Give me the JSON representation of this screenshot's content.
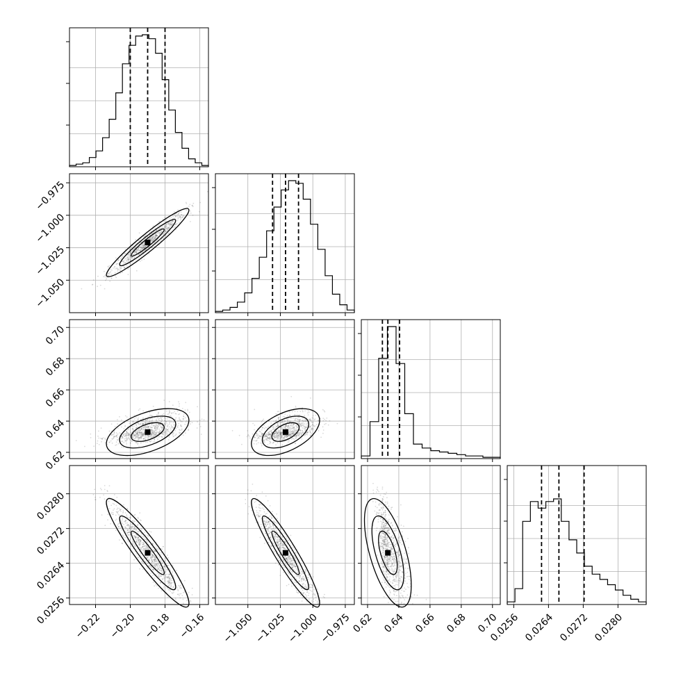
{
  "chart_data": {
    "type": "corner",
    "title": "",
    "parameters": [
      {
        "range": [
          -0.235,
          -0.155
        ],
        "ticks": [
          -0.22,
          -0.2,
          -0.18,
          -0.16
        ],
        "tick_labels": [
          "−0.22",
          "−0.20",
          "−0.18",
          "−0.16"
        ],
        "median": -0.19,
        "q16": -0.2,
        "q84": -0.18,
        "spread": 0.0095
      },
      {
        "range": [
          -1.075,
          -0.968
        ],
        "ticks": [
          -1.05,
          -1.025,
          -1.0,
          -0.975
        ],
        "tick_labels": [
          "−1.050",
          "−1.025",
          "−1.000",
          "−0.975"
        ],
        "median": -1.021,
        "q16": -1.031,
        "q84": -1.011,
        "spread": 0.0105
      },
      {
        "range": [
          0.616,
          0.705
        ],
        "ticks": [
          0.62,
          0.64,
          0.66,
          0.68,
          0.7
        ],
        "tick_labels": [
          "0.62",
          "0.64",
          "0.66",
          "0.68",
          "0.70"
        ],
        "median": 0.633,
        "q16": 0.6295,
        "q84": 0.6405,
        "spread": 0.006
      },
      {
        "range": [
          0.02545,
          0.02865
        ],
        "ticks": [
          0.0256,
          0.0264,
          0.0272,
          0.028
        ],
        "tick_labels": [
          "0.0256",
          "0.0264",
          "0.0272",
          "0.0280"
        ],
        "median": 0.02664,
        "q16": 0.02624,
        "q84": 0.02722,
        "spread": 0.0005
      }
    ],
    "histograms": [
      {
        "counts": [
          1,
          2,
          3,
          7,
          12,
          22,
          36,
          56,
          78,
          92,
          99,
          100,
          97,
          86,
          66,
          43,
          26,
          14,
          6,
          3,
          1
        ]
      },
      {
        "counts": [
          1,
          2,
          4,
          8,
          15,
          26,
          42,
          62,
          80,
          93,
          100,
          98,
          86,
          67,
          48,
          28,
          14,
          6,
          2
        ]
      },
      {
        "counts": [
          2,
          28,
          76,
          100,
          72,
          34,
          11,
          8,
          6,
          5,
          4,
          3,
          2,
          2,
          1,
          1
        ]
      },
      {
        "counts": [
          2,
          12,
          63,
          78,
          73,
          78,
          80,
          63,
          49,
          39,
          29,
          23,
          19,
          15,
          11,
          7,
          4,
          2
        ]
      }
    ],
    "correlations": [
      [
        0,
        1,
        0.95
      ],
      [
        0,
        2,
        0.5
      ],
      [
        1,
        2,
        0.5
      ],
      [
        0,
        3,
        -0.93
      ],
      [
        1,
        3,
        -0.93
      ],
      [
        2,
        3,
        -0.6
      ]
    ],
    "grid": true,
    "quantile_lines": "dashed",
    "contours": 3,
    "xlabel": "",
    "ylabel": ""
  }
}
